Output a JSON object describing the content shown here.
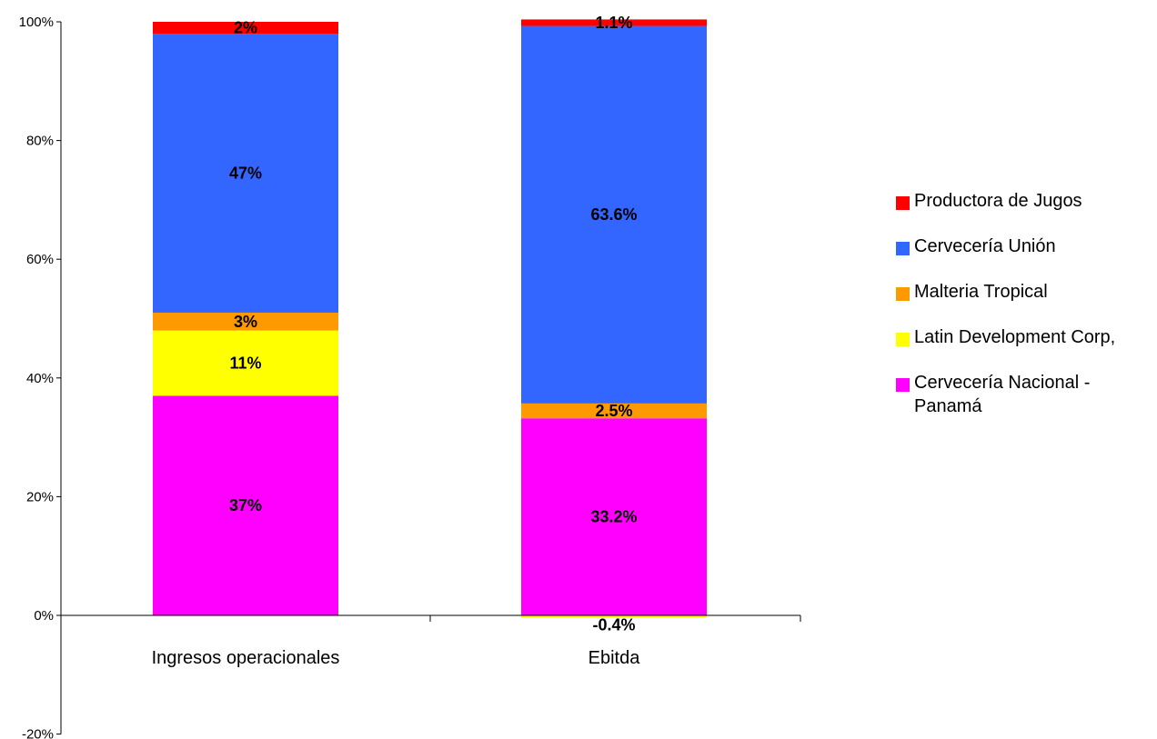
{
  "chart_data": {
    "type": "bar",
    "stacked": true,
    "categories": [
      "Ingresos operacionales",
      "Ebitda"
    ],
    "series": [
      {
        "name": "Cervecería Nacional - Panamá",
        "color": "#FF00FF",
        "values": [
          37,
          33.2
        ],
        "labels": [
          "37%",
          "33.2%"
        ]
      },
      {
        "name": "Latin Development Corp,",
        "color": "#FFFF00",
        "values": [
          11,
          -0.4
        ],
        "labels": [
          "11%",
          "-0.4%"
        ]
      },
      {
        "name": "Malteria Tropical",
        "color": "#FF9900",
        "values": [
          3,
          2.5
        ],
        "labels": [
          "3%",
          "2.5%"
        ]
      },
      {
        "name": "Cervecería Unión",
        "color": "#3366FF",
        "values": [
          47,
          63.6
        ],
        "labels": [
          "47%",
          "63.6%"
        ]
      },
      {
        "name": "Productora de Jugos",
        "color": "#FF0000",
        "values": [
          2,
          1.1
        ],
        "labels": [
          "2%",
          "1.1%"
        ]
      }
    ],
    "legend_order": [
      "Productora de Jugos",
      "Cervecería Unión",
      "Malteria Tropical",
      "Latin Development Corp,",
      "Cervecería Nacional - Panamá"
    ],
    "y_ticks": [
      "-20%",
      "0%",
      "20%",
      "40%",
      "60%",
      "80%",
      "100%"
    ],
    "y_tick_values": [
      -20,
      0,
      20,
      40,
      60,
      80,
      100
    ],
    "ylim": [
      -20,
      100
    ],
    "legend_position": "right",
    "grid": false
  }
}
